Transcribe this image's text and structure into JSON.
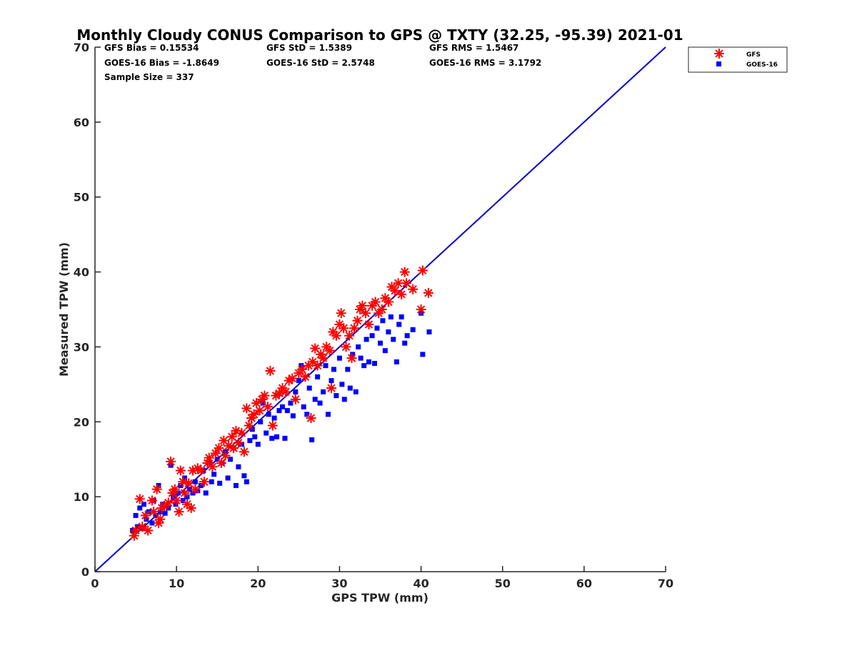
{
  "chart_data": {
    "type": "scatter",
    "title": "Monthly Cloudy CONUS Comparison to GPS @ TXTY (32.25, -95.39) 2021-01",
    "xlabel": "GPS TPW (mm)",
    "ylabel": "Measured TPW (mm)",
    "xlim": [
      0,
      70
    ],
    "ylim": [
      0,
      70
    ],
    "xticks": [
      "0",
      "10",
      "20",
      "30",
      "40",
      "50",
      "60",
      "70"
    ],
    "yticks": [
      "0",
      "10",
      "20",
      "30",
      "40",
      "50",
      "60",
      "70"
    ],
    "grid": false,
    "legend_position": "top-right outside",
    "reference_line": {
      "label": "1:1 line",
      "from": [
        0,
        0
      ],
      "to": [
        70,
        70
      ],
      "color": "#0000cc"
    },
    "stats": {
      "gfs_bias": "GFS Bias = 0.15534",
      "gfs_std": "GFS StD = 1.5389",
      "gfs_rms": "GFS RMS = 1.5467",
      "goes_bias": "GOES-16 Bias = -1.8649",
      "goes_std": "GOES-16 StD = 2.5748",
      "goes_rms": "GOES-16 RMS = 3.1792",
      "sample_size": "Sample Size = 337"
    },
    "series": [
      {
        "name": "GFS",
        "marker": "asterisk",
        "color": "#ff0000",
        "points": [
          [
            4.8,
            4.8
          ],
          [
            5.0,
            5.5
          ],
          [
            5.5,
            9.7
          ],
          [
            5.8,
            6.0
          ],
          [
            6.2,
            7.5
          ],
          [
            6.5,
            5.5
          ],
          [
            7.0,
            9.5
          ],
          [
            7.2,
            8.0
          ],
          [
            7.6,
            11.0
          ],
          [
            7.8,
            6.5
          ],
          [
            8.0,
            7.0
          ],
          [
            8.2,
            8.5
          ],
          [
            8.5,
            8.8
          ],
          [
            9.0,
            9.2
          ],
          [
            9.3,
            14.7
          ],
          [
            9.5,
            10.5
          ],
          [
            9.8,
            11.0
          ],
          [
            10.0,
            9.5
          ],
          [
            10.3,
            8.0
          ],
          [
            10.5,
            13.5
          ],
          [
            10.8,
            12.0
          ],
          [
            11.0,
            10.5
          ],
          [
            11.3,
            9.0
          ],
          [
            11.5,
            11.8
          ],
          [
            11.8,
            8.5
          ],
          [
            12.0,
            13.5
          ],
          [
            12.3,
            11.0
          ],
          [
            12.6,
            13.8
          ],
          [
            13.0,
            13.5
          ],
          [
            13.4,
            12.0
          ],
          [
            13.8,
            14.5
          ],
          [
            14.0,
            15.2
          ],
          [
            14.4,
            14.0
          ],
          [
            14.8,
            15.8
          ],
          [
            15.2,
            16.5
          ],
          [
            15.5,
            14.5
          ],
          [
            15.8,
            17.5
          ],
          [
            16.0,
            15.5
          ],
          [
            16.4,
            16.8
          ],
          [
            16.8,
            18.0
          ],
          [
            17.0,
            16.5
          ],
          [
            17.3,
            18.8
          ],
          [
            17.6,
            17.2
          ],
          [
            18.0,
            18.5
          ],
          [
            18.3,
            16.0
          ],
          [
            18.6,
            21.8
          ],
          [
            18.9,
            19.5
          ],
          [
            19.2,
            20.5
          ],
          [
            19.5,
            21.0
          ],
          [
            19.8,
            22.5
          ],
          [
            20.2,
            21.5
          ],
          [
            20.5,
            23.0
          ],
          [
            20.8,
            23.5
          ],
          [
            21.2,
            22.0
          ],
          [
            21.5,
            26.8
          ],
          [
            21.8,
            19.5
          ],
          [
            22.2,
            23.5
          ],
          [
            22.6,
            23.8
          ],
          [
            23.0,
            24.5
          ],
          [
            23.4,
            24.0
          ],
          [
            23.8,
            25.5
          ],
          [
            24.2,
            25.8
          ],
          [
            24.6,
            23.0
          ],
          [
            25.0,
            26.5
          ],
          [
            25.4,
            27.0
          ],
          [
            25.8,
            26.0
          ],
          [
            26.2,
            27.5
          ],
          [
            26.5,
            20.5
          ],
          [
            26.7,
            28.0
          ],
          [
            27.0,
            29.8
          ],
          [
            27.3,
            27.5
          ],
          [
            27.7,
            29.0
          ],
          [
            28.0,
            28.5
          ],
          [
            28.4,
            30.0
          ],
          [
            28.8,
            29.5
          ],
          [
            29.0,
            24.5
          ],
          [
            29.2,
            32.0
          ],
          [
            29.6,
            31.5
          ],
          [
            30.0,
            33.0
          ],
          [
            30.2,
            34.5
          ],
          [
            30.5,
            32.5
          ],
          [
            30.8,
            30.0
          ],
          [
            31.2,
            31.5
          ],
          [
            31.5,
            28.5
          ],
          [
            31.8,
            32.5
          ],
          [
            32.2,
            33.5
          ],
          [
            32.5,
            35.0
          ],
          [
            32.8,
            35.5
          ],
          [
            33.2,
            34.5
          ],
          [
            33.6,
            33.0
          ],
          [
            34.0,
            35.5
          ],
          [
            34.4,
            36.0
          ],
          [
            34.8,
            34.5
          ],
          [
            35.2,
            35.0
          ],
          [
            35.6,
            36.5
          ],
          [
            36.0,
            36.0
          ],
          [
            36.4,
            38.0
          ],
          [
            36.8,
            37.5
          ],
          [
            37.2,
            38.5
          ],
          [
            37.6,
            37.0
          ],
          [
            38.0,
            40.0
          ],
          [
            38.2,
            38.5
          ],
          [
            39.0,
            37.7
          ],
          [
            40.0,
            35.0
          ],
          [
            40.2,
            40.2
          ],
          [
            40.9,
            37.2
          ]
        ]
      },
      {
        "name": "GOES-16",
        "marker": "square",
        "color": "#0000ff",
        "points": [
          [
            4.6,
            5.5
          ],
          [
            5.0,
            7.5
          ],
          [
            5.2,
            6.0
          ],
          [
            5.5,
            8.5
          ],
          [
            5.8,
            5.8
          ],
          [
            6.0,
            9.0
          ],
          [
            6.3,
            7.0
          ],
          [
            6.6,
            8.0
          ],
          [
            7.0,
            6.5
          ],
          [
            7.2,
            9.5
          ],
          [
            7.5,
            7.5
          ],
          [
            7.8,
            11.5
          ],
          [
            8.0,
            8.0
          ],
          [
            8.3,
            9.0
          ],
          [
            8.6,
            7.8
          ],
          [
            9.0,
            8.5
          ],
          [
            9.3,
            14.2
          ],
          [
            9.6,
            10.0
          ],
          [
            9.9,
            9.0
          ],
          [
            10.2,
            10.5
          ],
          [
            10.5,
            11.5
          ],
          [
            10.8,
            9.5
          ],
          [
            11.0,
            12.5
          ],
          [
            11.3,
            10.0
          ],
          [
            11.6,
            11.0
          ],
          [
            12.0,
            10.5
          ],
          [
            12.3,
            12.0
          ],
          [
            12.6,
            10.8
          ],
          [
            13.0,
            11.5
          ],
          [
            13.3,
            13.5
          ],
          [
            13.6,
            10.5
          ],
          [
            14.0,
            14.5
          ],
          [
            14.3,
            12.0
          ],
          [
            14.6,
            13.0
          ],
          [
            15.0,
            15.0
          ],
          [
            15.3,
            11.8
          ],
          [
            15.6,
            14.5
          ],
          [
            16.0,
            16.0
          ],
          [
            16.3,
            12.5
          ],
          [
            16.6,
            15.0
          ],
          [
            17.0,
            16.5
          ],
          [
            17.3,
            11.5
          ],
          [
            17.6,
            14.0
          ],
          [
            18.0,
            17.0
          ],
          [
            18.3,
            12.8
          ],
          [
            18.6,
            12.0
          ],
          [
            19.0,
            17.5
          ],
          [
            19.3,
            19.0
          ],
          [
            19.6,
            18.0
          ],
          [
            20.0,
            17.0
          ],
          [
            20.3,
            20.0
          ],
          [
            20.6,
            22.5
          ],
          [
            21.0,
            18.5
          ],
          [
            21.3,
            21.0
          ],
          [
            21.7,
            17.8
          ],
          [
            22.0,
            20.5
          ],
          [
            22.3,
            18.0
          ],
          [
            22.6,
            21.5
          ],
          [
            23.0,
            22.0
          ],
          [
            23.3,
            17.8
          ],
          [
            23.6,
            21.5
          ],
          [
            24.0,
            22.5
          ],
          [
            24.3,
            20.8
          ],
          [
            24.6,
            24.0
          ],
          [
            25.0,
            25.5
          ],
          [
            25.3,
            27.5
          ],
          [
            25.6,
            22.0
          ],
          [
            26.0,
            21.0
          ],
          [
            26.3,
            24.5
          ],
          [
            26.6,
            17.6
          ],
          [
            27.0,
            23.0
          ],
          [
            27.3,
            26.0
          ],
          [
            27.6,
            22.5
          ],
          [
            28.0,
            24.0
          ],
          [
            28.3,
            27.5
          ],
          [
            28.6,
            21.0
          ],
          [
            29.0,
            25.5
          ],
          [
            29.3,
            27.0
          ],
          [
            29.6,
            23.5
          ],
          [
            30.0,
            28.5
          ],
          [
            30.3,
            25.0
          ],
          [
            30.6,
            23.0
          ],
          [
            31.0,
            27.0
          ],
          [
            31.3,
            24.5
          ],
          [
            31.6,
            29.0
          ],
          [
            32.0,
            24.0
          ],
          [
            32.3,
            30.0
          ],
          [
            32.6,
            28.5
          ],
          [
            33.0,
            27.5
          ],
          [
            33.3,
            31.0
          ],
          [
            33.6,
            28.0
          ],
          [
            34.0,
            31.5
          ],
          [
            34.3,
            27.8
          ],
          [
            34.6,
            32.5
          ],
          [
            35.0,
            30.5
          ],
          [
            35.3,
            33.5
          ],
          [
            35.6,
            29.5
          ],
          [
            36.0,
            32.0
          ],
          [
            36.3,
            34.0
          ],
          [
            36.6,
            31.0
          ],
          [
            37.0,
            28.0
          ],
          [
            37.3,
            33.0
          ],
          [
            37.6,
            34.0
          ],
          [
            38.0,
            30.5
          ],
          [
            38.3,
            31.5
          ],
          [
            39.0,
            32.3
          ],
          [
            40.0,
            34.5
          ],
          [
            40.2,
            29.0
          ],
          [
            41.0,
            32.0
          ]
        ]
      }
    ]
  }
}
